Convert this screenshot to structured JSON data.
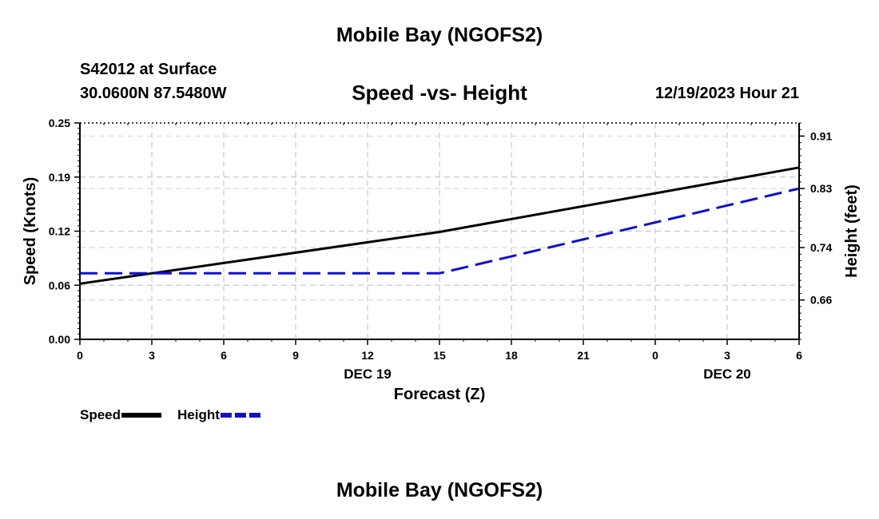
{
  "header": {
    "title": "Mobile Bay (NGOFS2)",
    "station": "S42012 at Surface",
    "coordinates": "30.0600N  87.5480W",
    "chart_title": "Speed -vs- Height",
    "datetime": "12/19/2023 Hour 21"
  },
  "footer": {
    "title": "Mobile Bay (NGOFS2)"
  },
  "chart_data": {
    "type": "line",
    "title": "Speed -vs- Height",
    "xlabel": "Forecast (Z)",
    "ylabel": "Speed (Knots)",
    "y2label": "Height (feet)",
    "x_tick_labels": [
      "0",
      "3",
      "6",
      "9",
      "12",
      "15",
      "18",
      "21",
      "0",
      "3",
      "6"
    ],
    "x_date_labels": [
      {
        "at_tick": 4,
        "label": "DEC 19"
      },
      {
        "at_tick": 9,
        "label": "DEC 20"
      }
    ],
    "y_ticks": [
      "0.00",
      "0.06",
      "0.12",
      "0.19",
      "0.25"
    ],
    "y2_ticks": [
      "0.66",
      "0.74",
      "0.83",
      "0.91"
    ],
    "ylim": [
      0,
      0.25
    ],
    "y2lim": [
      0.6,
      0.93
    ],
    "grid": true,
    "x": [
      0,
      3,
      6,
      9,
      12,
      15,
      18,
      21,
      24,
      27,
      30
    ],
    "series": [
      {
        "name": "Speed",
        "axis": "left",
        "color": "#000000",
        "style": "solid",
        "points": [
          [
            0,
            0.0643
          ],
          [
            15,
            0.1241
          ],
          [
            30,
            0.1985
          ]
        ]
      },
      {
        "name": "Height",
        "axis": "right",
        "color": "#1010c8",
        "style": "dashed",
        "points": [
          [
            0,
            0.7007
          ],
          [
            15,
            0.7007
          ],
          [
            30,
            0.83
          ]
        ]
      }
    ],
    "legend": [
      "Speed",
      "Height"
    ],
    "legend_position": "bottom-left"
  }
}
